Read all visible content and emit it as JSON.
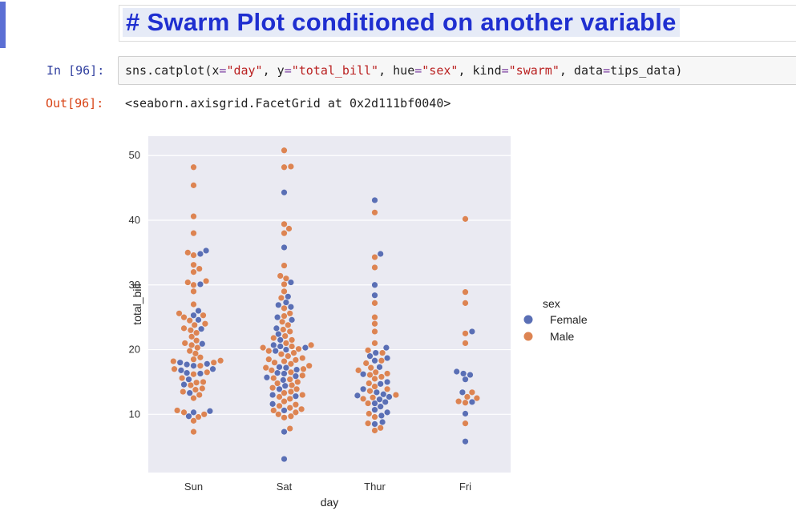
{
  "markdown": {
    "heading": "# Swarm Plot conditioned on another variable"
  },
  "input_cell": {
    "prompt": "In [96]:",
    "code_parts": {
      "p1": "sns.catplot(x",
      "eq1": "=",
      "s1": "\"day\"",
      "p2": ", y",
      "eq2": "=",
      "s2": "\"total_bill\"",
      "p3": ", hue",
      "eq3": "=",
      "s3": "\"sex\"",
      "p4": ", kind",
      "eq4": "=",
      "s4": "\"swarm\"",
      "p5": ", data",
      "eq5": "=",
      "p6": "tips_data)"
    }
  },
  "output_cell": {
    "prompt": "Out[96]:",
    "text": "<seaborn.axisgrid.FacetGrid at 0x2d111bf0040>"
  },
  "chart_data": {
    "type": "scatter",
    "subtype": "swarm",
    "xlabel": "day",
    "ylabel": "total_bill",
    "categories": [
      "Sun",
      "Sat",
      "Thur",
      "Fri"
    ],
    "y_ticks": [
      10,
      20,
      30,
      40,
      50
    ],
    "ylim": [
      1,
      53
    ],
    "grid": true,
    "legend": {
      "title": "sex",
      "placement": "right",
      "entries": [
        "Female",
        "Male"
      ]
    },
    "colors": {
      "Female": "#5a6fb5",
      "Male": "#dd8452",
      "background": "#eaeaf2",
      "grid": "#ffffff"
    },
    "series": [
      {
        "name": "Female",
        "points": {
          "Sun": [
            35.3,
            34.8,
            30.1,
            26.0,
            25.3,
            24.6,
            23.2,
            20.9,
            18.0,
            17.8,
            17.7,
            17.5,
            17.0,
            16.8,
            16.4,
            16.3,
            15.4,
            14.6,
            13.3,
            10.5,
            10.3,
            9.7
          ],
          "Sat": [
            44.3,
            35.8,
            30.4,
            28.2,
            27.3,
            26.9,
            26.6,
            25.0,
            24.6,
            23.3,
            22.4,
            21.5,
            20.7,
            20.5,
            20.3,
            20.0,
            19.8,
            17.3,
            17.2,
            16.9,
            16.4,
            16.3,
            15.9,
            15.7,
            15.3,
            14.4,
            13.9,
            13.0,
            12.8,
            11.6,
            10.6,
            7.3,
            3.1
          ],
          "Thur": [
            43.1,
            34.8,
            30.0,
            28.4,
            20.3,
            19.5,
            19.0,
            18.7,
            18.3,
            17.3,
            16.2,
            15.0,
            14.7,
            13.9,
            13.4,
            13.1,
            12.9,
            12.7,
            12.3,
            11.9,
            11.7,
            11.2,
            10.7,
            10.3,
            9.8,
            8.8,
            8.5
          ],
          "Fri": [
            22.8,
            16.6,
            16.3,
            16.1,
            15.4,
            13.4,
            11.9,
            10.1,
            5.8
          ]
        }
      },
      {
        "name": "Male",
        "points": {
          "Sun": [
            48.2,
            45.4,
            40.6,
            38.0,
            35.0,
            34.6,
            33.1,
            32.5,
            32.0,
            30.6,
            30.4,
            30.0,
            29.0,
            27.0,
            25.6,
            25.3,
            25.0,
            24.5,
            24.0,
            23.8,
            23.3,
            23.0,
            22.6,
            22.0,
            21.4,
            21.0,
            20.7,
            20.3,
            19.8,
            19.4,
            18.8,
            18.5,
            18.3,
            18.2,
            18.0,
            17.5,
            17.0,
            16.5,
            16.2,
            15.6,
            15.0,
            14.9,
            14.5,
            14.0,
            13.8,
            13.5,
            13.0,
            12.5,
            10.6,
            10.3,
            10.0,
            9.6,
            9.0,
            7.3
          ],
          "Sat": [
            50.8,
            48.3,
            48.2,
            39.4,
            38.7,
            38.0,
            33.0,
            31.4,
            31.0,
            30.1,
            29.0,
            28.0,
            26.4,
            25.6,
            25.2,
            24.3,
            23.8,
            23.1,
            22.8,
            22.1,
            21.8,
            21.5,
            21.0,
            20.7,
            20.5,
            20.3,
            20.1,
            19.8,
            19.5,
            19.3,
            19.0,
            18.7,
            18.5,
            18.4,
            18.2,
            18.0,
            17.8,
            17.5,
            17.2,
            17.0,
            16.8,
            16.5,
            16.0,
            15.6,
            15.4,
            15.0,
            14.8,
            14.5,
            14.1,
            13.9,
            13.5,
            13.3,
            13.0,
            12.7,
            12.4,
            12.0,
            11.5,
            11.3,
            11.0,
            10.8,
            10.6,
            10.3,
            10.0,
            9.7,
            9.5,
            7.8
          ],
          "Thur": [
            41.2,
            34.3,
            32.7,
            27.2,
            25.0,
            24.0,
            22.8,
            21.0,
            19.9,
            19.5,
            18.3,
            17.9,
            17.2,
            16.8,
            16.5,
            16.3,
            16.1,
            15.8,
            15.5,
            14.8,
            14.3,
            13.9,
            13.6,
            13.0,
            12.6,
            12.4,
            11.7,
            10.1,
            9.6,
            8.6,
            7.9,
            7.5
          ],
          "Fri": [
            40.2,
            28.9,
            27.2,
            22.5,
            21.0,
            13.4,
            12.7,
            12.5,
            12.0,
            11.8,
            8.6
          ]
        }
      }
    ]
  }
}
